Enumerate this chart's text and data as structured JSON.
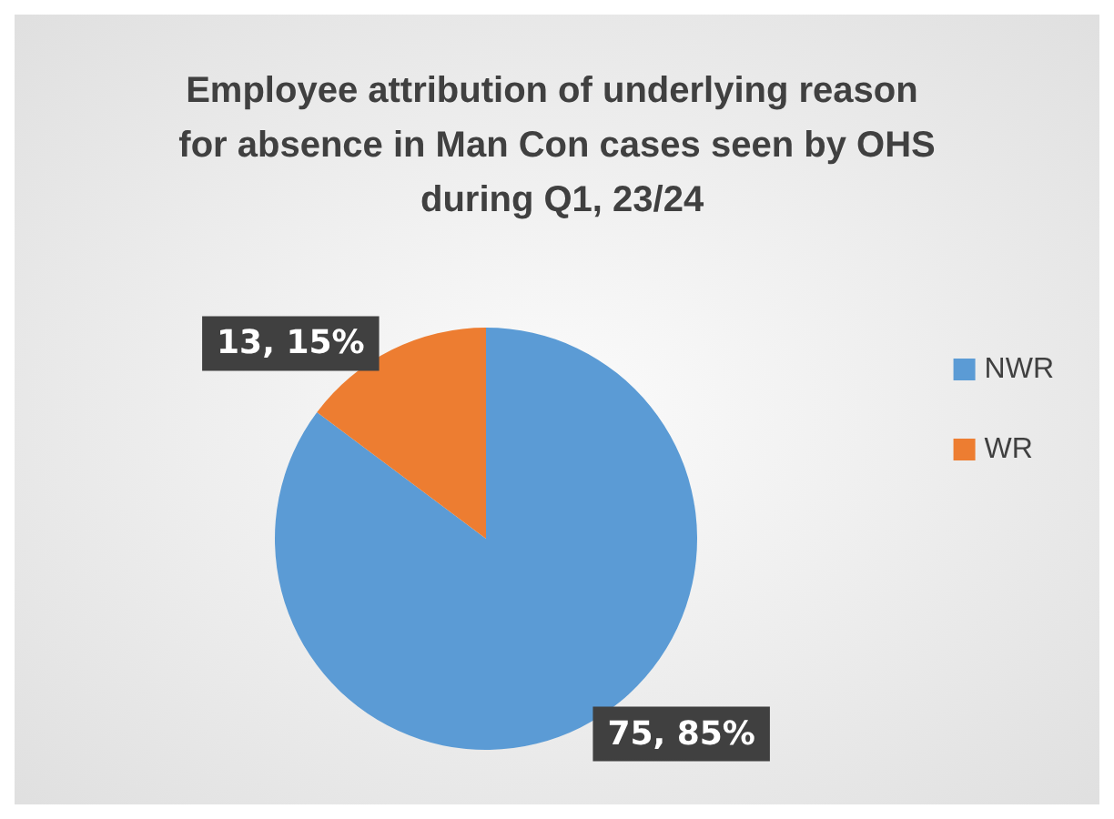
{
  "chart_data": {
    "type": "pie",
    "title": "Employee attribution of underlying reason for absence in Man Con cases seen by OHS during Q1, 23/24",
    "categories": [
      "NWR",
      "WR"
    ],
    "values": [
      75,
      13
    ],
    "colors": [
      "#5b9bd5",
      "#ed7d31"
    ],
    "value_labels": [
      "75, 85%",
      "13, 15%"
    ],
    "legend": "right"
  }
}
